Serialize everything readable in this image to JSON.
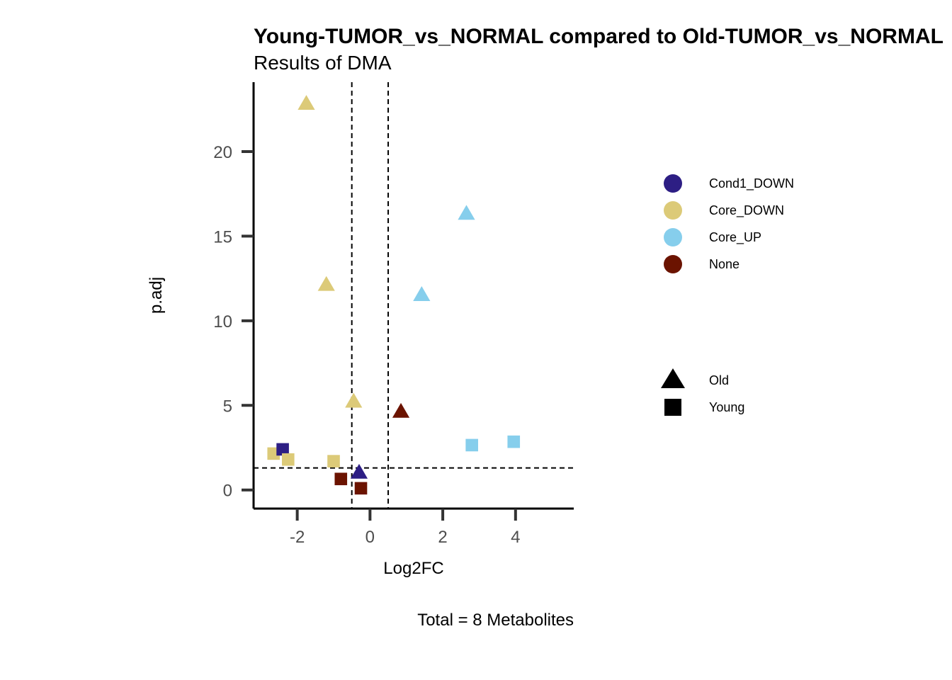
{
  "chart_data": {
    "type": "scatter",
    "title": "Young-TUMOR_vs_NORMAL compared to Old-TUMOR_vs_NORMAL",
    "subtitle": "Results of DMA",
    "xlabel": "Log2FC",
    "ylabel": "p.adj",
    "caption": "Total = 8 Metabolites",
    "xlim": [
      -3.2,
      5.6
    ],
    "ylim": [
      -1.1,
      24.1
    ],
    "xticks": [
      -2,
      0,
      2,
      4
    ],
    "yticks": [
      0,
      5,
      10,
      15,
      20
    ],
    "xtick_labels": [
      "-2",
      "0",
      "2",
      "4"
    ],
    "ytick_labels": [
      "0",
      "5",
      "10",
      "15",
      "20"
    ],
    "threshold_lines": {
      "x": [
        -0.5,
        0.5
      ],
      "y": [
        1.3
      ]
    },
    "grid": false,
    "legend_position": "right",
    "color_legend": [
      {
        "name": "Cond1_DOWN",
        "color": "#2d1e84"
      },
      {
        "name": "Core_DOWN",
        "color": "#dcca78"
      },
      {
        "name": "Core_UP",
        "color": "#86ceec"
      },
      {
        "name": "None",
        "color": "#6b1300"
      }
    ],
    "shape_legend": [
      {
        "name": "Old",
        "shape": "triangle"
      },
      {
        "name": "Young",
        "shape": "square"
      }
    ],
    "points": [
      {
        "x": -1.75,
        "y": 22.8,
        "group": "Core_DOWN",
        "shape": "Old"
      },
      {
        "x": 2.65,
        "y": 16.3,
        "group": "Core_UP",
        "shape": "Old"
      },
      {
        "x": -1.2,
        "y": 12.1,
        "group": "Core_DOWN",
        "shape": "Old"
      },
      {
        "x": 1.42,
        "y": 11.5,
        "group": "Core_UP",
        "shape": "Old"
      },
      {
        "x": -0.45,
        "y": 5.2,
        "group": "Core_DOWN",
        "shape": "Old"
      },
      {
        "x": 0.85,
        "y": 4.6,
        "group": "None",
        "shape": "Old"
      },
      {
        "x": -0.3,
        "y": 1.0,
        "group": "Cond1_DOWN",
        "shape": "Old"
      },
      {
        "x": -2.65,
        "y": 2.15,
        "group": "Core_DOWN",
        "shape": "Young"
      },
      {
        "x": -2.4,
        "y": 2.4,
        "group": "Cond1_DOWN",
        "shape": "Young"
      },
      {
        "x": -2.25,
        "y": 1.8,
        "group": "Core_DOWN",
        "shape": "Young"
      },
      {
        "x": -1.0,
        "y": 1.7,
        "group": "Core_DOWN",
        "shape": "Young"
      },
      {
        "x": -0.8,
        "y": 0.65,
        "group": "None",
        "shape": "Young"
      },
      {
        "x": -0.25,
        "y": 0.1,
        "group": "None",
        "shape": "Young"
      },
      {
        "x": 2.8,
        "y": 2.65,
        "group": "Core_UP",
        "shape": "Young"
      },
      {
        "x": 3.95,
        "y": 2.85,
        "group": "Core_UP",
        "shape": "Young"
      }
    ]
  }
}
